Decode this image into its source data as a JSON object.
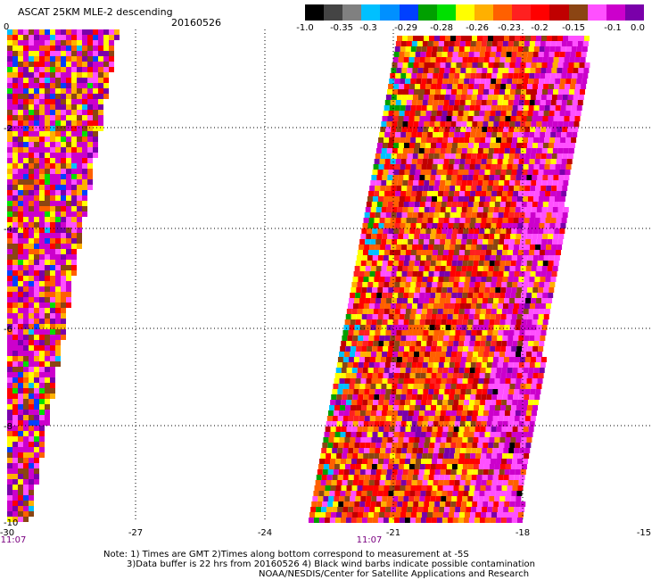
{
  "header": {
    "title": "ASCAT 25KM MLE-2 descending",
    "date": "20160526"
  },
  "colorbar": {
    "colors": [
      "#000000",
      "#444444",
      "#808080",
      "#00c0ff",
      "#0090ff",
      "#0040ff",
      "#00a000",
      "#00e000",
      "#ffff00",
      "#ffb000",
      "#ff6000",
      "#ff2020",
      "#ff0000",
      "#c00000",
      "#8b4513",
      "#ff50ff",
      "#cc00cc",
      "#7a00aa"
    ],
    "ticks": [
      "-1.0",
      "-0.35",
      "-0.3",
      "-0.29",
      "-0.28",
      "-0.26",
      "-0.23",
      "-0.2",
      "-0.15",
      "-0.1",
      "0.0"
    ]
  },
  "map": {
    "x_ticks": [
      "-30",
      "-27",
      "-24",
      "-21",
      "-18",
      "-15"
    ],
    "y_ticks": [
      "0",
      "-2",
      "-4",
      "-6",
      "-8",
      "-10"
    ],
    "times": [
      "11:07",
      "11:07"
    ],
    "x_range": [
      -30,
      -15
    ],
    "y_range": [
      -10,
      0
    ]
  },
  "footer": {
    "line1": "Note: 1) Times are GMT 2)Times along bottom correspond to measurement at -5S",
    "line2": "3)Data buffer is 22 hrs from 20160526 4) Black wind barbs indicate possible contamination",
    "line3": "NOAA/NESDIS/Center for Satellite Applications and Research"
  }
}
